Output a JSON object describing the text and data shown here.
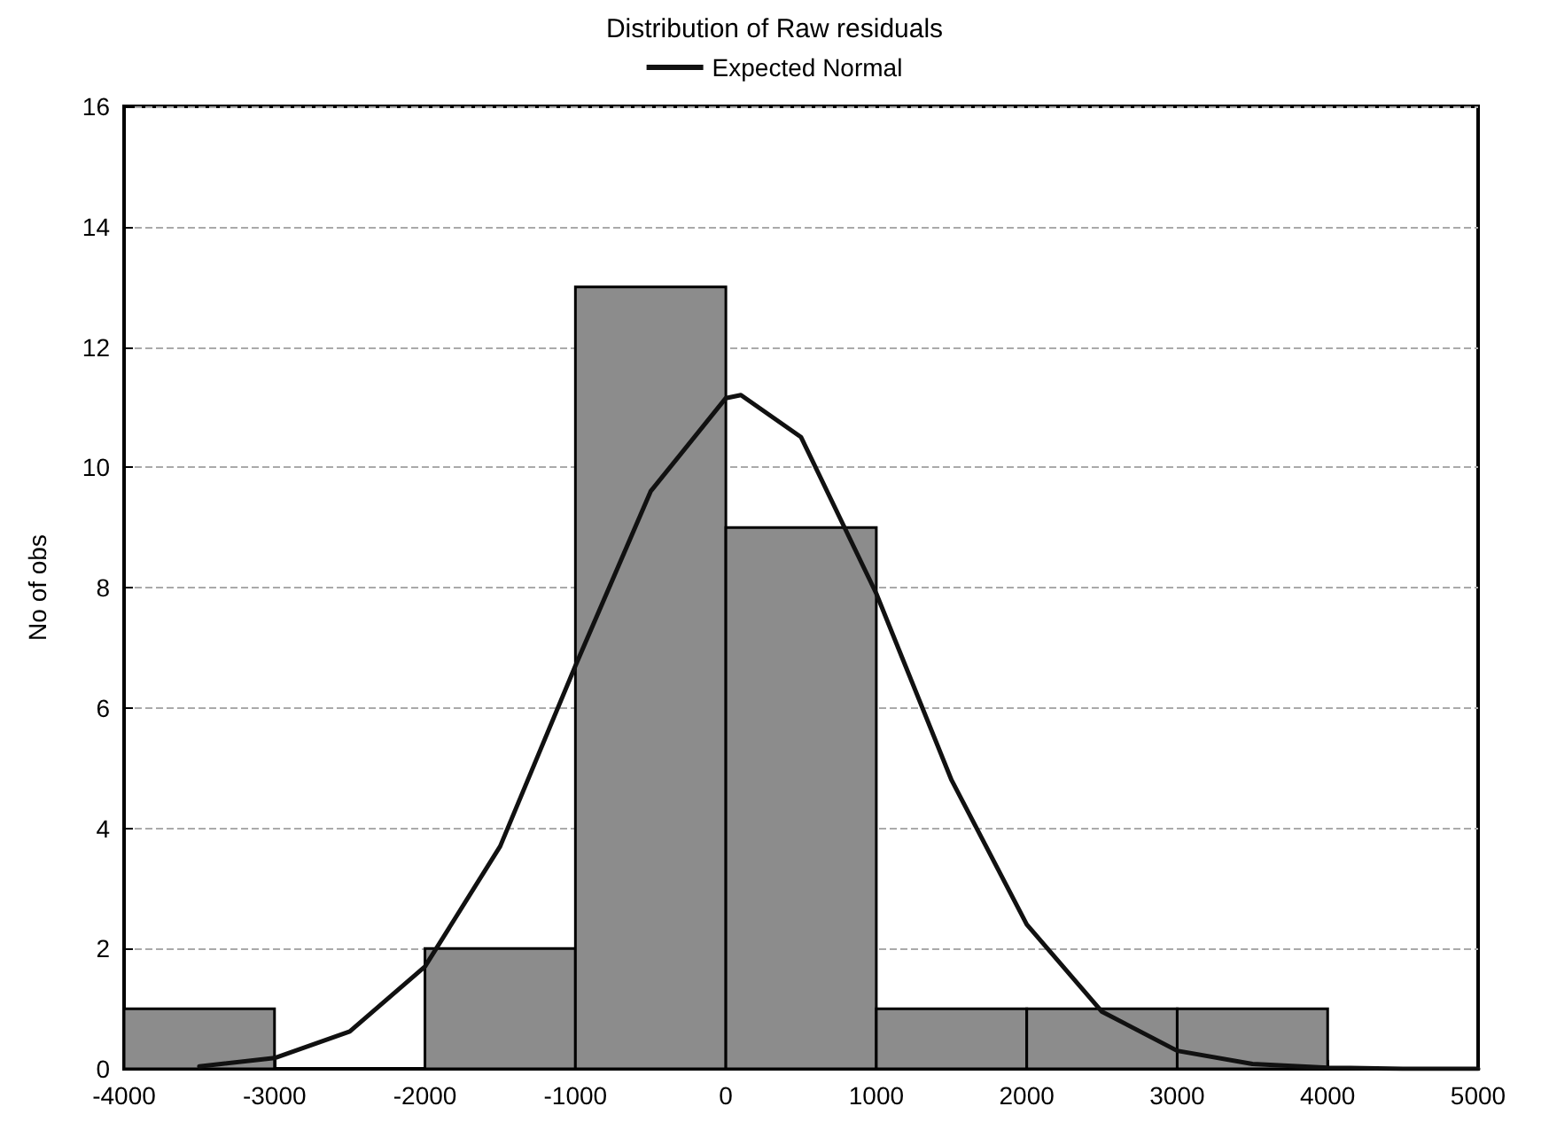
{
  "chart_data": {
    "type": "histogram",
    "title": "Distribution of Raw residuals",
    "ylabel": "No of obs",
    "bins": [
      -4000,
      -3000,
      -2000,
      -1000,
      0,
      1000,
      2000,
      3000,
      4000,
      5000
    ],
    "values": [
      1,
      0,
      2,
      13,
      9,
      1,
      1,
      1,
      0
    ],
    "color": "#8c8c8c",
    "series": [
      {
        "type": "line",
        "name": "Expected Normal",
        "color": "#111111",
        "x": [
          -3500,
          -3000,
          -2500,
          -2000,
          -1500,
          -1000,
          -500,
          0,
          100,
          500,
          1000,
          1500,
          2000,
          2500,
          3000,
          3500,
          4000,
          4500,
          5000
        ],
        "values": [
          0.04,
          0.18,
          0.62,
          1.7,
          3.7,
          6.7,
          9.6,
          11.15,
          11.2,
          10.5,
          7.9,
          4.8,
          2.4,
          0.95,
          0.3,
          0.08,
          0.02,
          0,
          0
        ]
      }
    ],
    "xlim": [
      -4000,
      5000
    ],
    "xticks": [
      -4000,
      -3000,
      -2000,
      -1000,
      0,
      1000,
      2000,
      3000,
      4000,
      5000
    ],
    "ylim": [
      0,
      16
    ],
    "yticks": [
      0,
      2,
      4,
      6,
      8,
      10,
      12,
      14,
      16
    ],
    "grid": "y",
    "legend": "top",
    "marker": "none",
    "line_style": "solid"
  }
}
